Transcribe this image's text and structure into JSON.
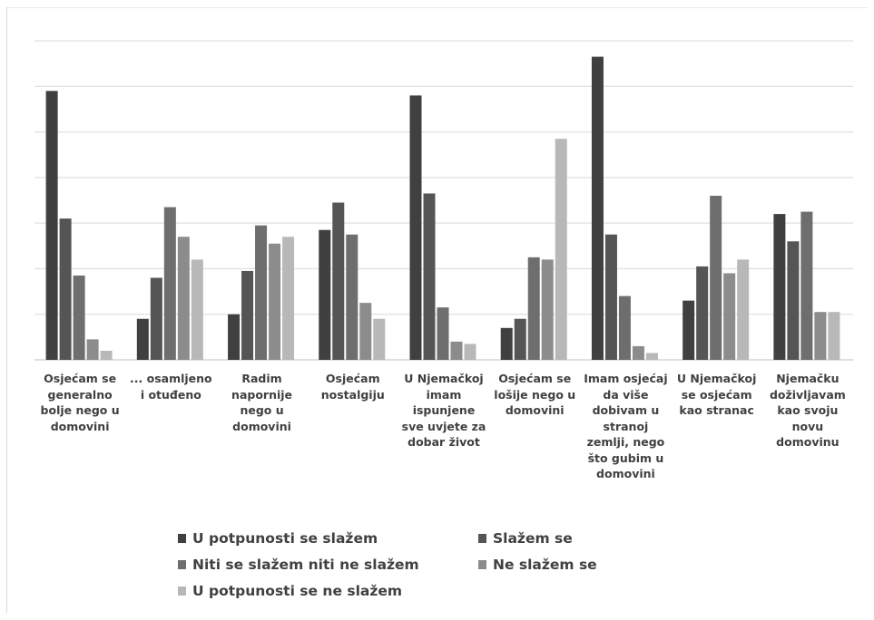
{
  "chart_data": {
    "type": "bar",
    "title": "",
    "xlabel": "",
    "ylabel": "",
    "ylim": [
      0,
      7
    ],
    "grid": true,
    "legend_position": "bottom",
    "categories": [
      "Osjećam se\ngeneralno\nbolje nego u\ndomovini",
      "... osamljeno\ni otuđeno",
      "Radim\nnapornije\nnego u\ndomovini",
      "Osjećam\nnostalgiju",
      "U Njemačkoj\nimam\nispunjene\nsve uvjete za\ndobar život",
      "Osjećam se\nlošije nego u\ndomovini",
      "Imam osjećaj\nda više\ndobivam u\nstranoj\nzemlji, nego\nšto gubim u\ndomovini",
      "U Njemačkoj\nse osjećam\nkao stranac",
      "Njemačku\ndoživljavam\nkao svoju\nnovu\ndomovinu"
    ],
    "series": [
      {
        "name": "U potpunosti se slažem",
        "color": "#404040",
        "values": [
          5.9,
          0.9,
          1.0,
          2.85,
          5.8,
          0.7,
          6.65,
          1.3,
          3.2
        ]
      },
      {
        "name": "Slažem se",
        "color": "#555555",
        "values": [
          3.1,
          1.8,
          1.95,
          3.45,
          3.65,
          0.9,
          2.75,
          2.05,
          2.6
        ]
      },
      {
        "name": "Niti se slažem niti ne slažem",
        "color": "#6e6e6e",
        "values": [
          1.85,
          3.35,
          2.95,
          2.75,
          1.15,
          2.25,
          1.4,
          3.6,
          3.25
        ]
      },
      {
        "name": "Ne slažem se",
        "color": "#8c8c8c",
        "values": [
          0.45,
          2.7,
          2.55,
          1.25,
          0.4,
          2.2,
          0.3,
          1.9,
          1.05
        ]
      },
      {
        "name": "U potpunosti se ne slažem",
        "color": "#b8b8b8",
        "values": [
          0.2,
          2.2,
          2.7,
          0.9,
          0.35,
          4.85,
          0.15,
          2.2,
          1.05
        ]
      }
    ]
  }
}
